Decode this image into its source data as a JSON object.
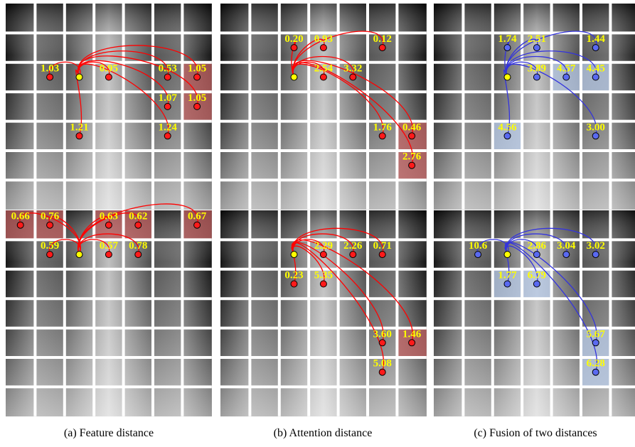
{
  "panels": [
    {
      "labels": [
        "1.03",
        "0.95",
        "0.53",
        "1.05",
        "1.07",
        "1.05",
        "1.21",
        "1.24"
      ]
    },
    {
      "labels": [
        "0.20",
        "0.93",
        "0.12",
        "2.54",
        "3.32",
        "1.76",
        "0.46",
        "2.76"
      ]
    },
    {
      "labels": [
        "1.74",
        "2.51",
        "1.44",
        "3.89",
        "4.57",
        "4.45",
        "4.56",
        "3.00"
      ]
    },
    {
      "labels": [
        "0.66",
        "0.76",
        "0.63",
        "0.62",
        "0.67",
        "0.59",
        "0.57",
        "0.78"
      ]
    },
    {
      "labels": [
        "2.29",
        "2.26",
        "0.71",
        "0.23",
        "5.35",
        "3.60",
        "1.46",
        "5.08"
      ]
    },
    {
      "labels": [
        "10.6",
        "2.86",
        "3.04",
        "3.02",
        "1.77",
        "6.79",
        "5.67",
        "6.28"
      ]
    }
  ],
  "captions": [
    "(a) Feature distance",
    "(b) Attention distance",
    "(c) Fusion of two distances"
  ]
}
